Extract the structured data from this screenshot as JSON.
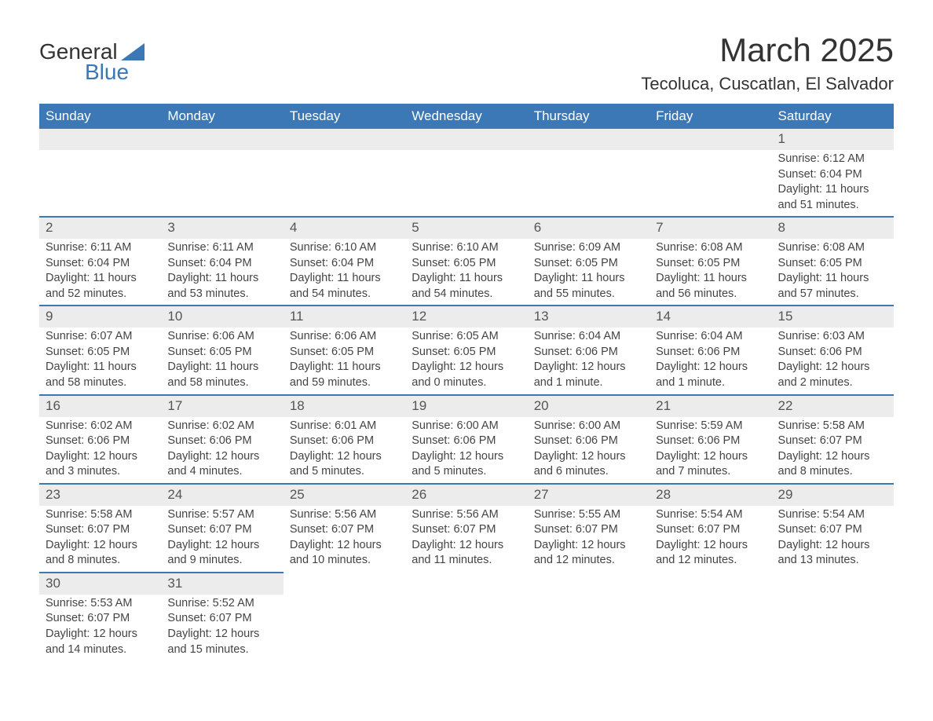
{
  "logo": {
    "text1": "General",
    "text2": "Blue",
    "accent_color": "#3b78b5"
  },
  "title": "March 2025",
  "location": "Tecoluca, Cuscatlan, El Salvador",
  "colors": {
    "header_bg": "#3b78b5",
    "header_text": "#ffffff",
    "daynum_bg": "#ececec",
    "row_border": "#3b78b5",
    "body_text": "#444444"
  },
  "typography": {
    "title_fontsize": 42,
    "location_fontsize": 22,
    "header_fontsize": 17,
    "daynum_fontsize": 17,
    "body_fontsize": 14.5
  },
  "day_headers": [
    "Sunday",
    "Monday",
    "Tuesday",
    "Wednesday",
    "Thursday",
    "Friday",
    "Saturday"
  ],
  "weeks": [
    [
      null,
      null,
      null,
      null,
      null,
      null,
      {
        "n": "1",
        "sunrise": "Sunrise: 6:12 AM",
        "sunset": "Sunset: 6:04 PM",
        "daylight": "Daylight: 11 hours and 51 minutes."
      }
    ],
    [
      {
        "n": "2",
        "sunrise": "Sunrise: 6:11 AM",
        "sunset": "Sunset: 6:04 PM",
        "daylight": "Daylight: 11 hours and 52 minutes."
      },
      {
        "n": "3",
        "sunrise": "Sunrise: 6:11 AM",
        "sunset": "Sunset: 6:04 PM",
        "daylight": "Daylight: 11 hours and 53 minutes."
      },
      {
        "n": "4",
        "sunrise": "Sunrise: 6:10 AM",
        "sunset": "Sunset: 6:04 PM",
        "daylight": "Daylight: 11 hours and 54 minutes."
      },
      {
        "n": "5",
        "sunrise": "Sunrise: 6:10 AM",
        "sunset": "Sunset: 6:05 PM",
        "daylight": "Daylight: 11 hours and 54 minutes."
      },
      {
        "n": "6",
        "sunrise": "Sunrise: 6:09 AM",
        "sunset": "Sunset: 6:05 PM",
        "daylight": "Daylight: 11 hours and 55 minutes."
      },
      {
        "n": "7",
        "sunrise": "Sunrise: 6:08 AM",
        "sunset": "Sunset: 6:05 PM",
        "daylight": "Daylight: 11 hours and 56 minutes."
      },
      {
        "n": "8",
        "sunrise": "Sunrise: 6:08 AM",
        "sunset": "Sunset: 6:05 PM",
        "daylight": "Daylight: 11 hours and 57 minutes."
      }
    ],
    [
      {
        "n": "9",
        "sunrise": "Sunrise: 6:07 AM",
        "sunset": "Sunset: 6:05 PM",
        "daylight": "Daylight: 11 hours and 58 minutes."
      },
      {
        "n": "10",
        "sunrise": "Sunrise: 6:06 AM",
        "sunset": "Sunset: 6:05 PM",
        "daylight": "Daylight: 11 hours and 58 minutes."
      },
      {
        "n": "11",
        "sunrise": "Sunrise: 6:06 AM",
        "sunset": "Sunset: 6:05 PM",
        "daylight": "Daylight: 11 hours and 59 minutes."
      },
      {
        "n": "12",
        "sunrise": "Sunrise: 6:05 AM",
        "sunset": "Sunset: 6:05 PM",
        "daylight": "Daylight: 12 hours and 0 minutes."
      },
      {
        "n": "13",
        "sunrise": "Sunrise: 6:04 AM",
        "sunset": "Sunset: 6:06 PM",
        "daylight": "Daylight: 12 hours and 1 minute."
      },
      {
        "n": "14",
        "sunrise": "Sunrise: 6:04 AM",
        "sunset": "Sunset: 6:06 PM",
        "daylight": "Daylight: 12 hours and 1 minute."
      },
      {
        "n": "15",
        "sunrise": "Sunrise: 6:03 AM",
        "sunset": "Sunset: 6:06 PM",
        "daylight": "Daylight: 12 hours and 2 minutes."
      }
    ],
    [
      {
        "n": "16",
        "sunrise": "Sunrise: 6:02 AM",
        "sunset": "Sunset: 6:06 PM",
        "daylight": "Daylight: 12 hours and 3 minutes."
      },
      {
        "n": "17",
        "sunrise": "Sunrise: 6:02 AM",
        "sunset": "Sunset: 6:06 PM",
        "daylight": "Daylight: 12 hours and 4 minutes."
      },
      {
        "n": "18",
        "sunrise": "Sunrise: 6:01 AM",
        "sunset": "Sunset: 6:06 PM",
        "daylight": "Daylight: 12 hours and 5 minutes."
      },
      {
        "n": "19",
        "sunrise": "Sunrise: 6:00 AM",
        "sunset": "Sunset: 6:06 PM",
        "daylight": "Daylight: 12 hours and 5 minutes."
      },
      {
        "n": "20",
        "sunrise": "Sunrise: 6:00 AM",
        "sunset": "Sunset: 6:06 PM",
        "daylight": "Daylight: 12 hours and 6 minutes."
      },
      {
        "n": "21",
        "sunrise": "Sunrise: 5:59 AM",
        "sunset": "Sunset: 6:06 PM",
        "daylight": "Daylight: 12 hours and 7 minutes."
      },
      {
        "n": "22",
        "sunrise": "Sunrise: 5:58 AM",
        "sunset": "Sunset: 6:07 PM",
        "daylight": "Daylight: 12 hours and 8 minutes."
      }
    ],
    [
      {
        "n": "23",
        "sunrise": "Sunrise: 5:58 AM",
        "sunset": "Sunset: 6:07 PM",
        "daylight": "Daylight: 12 hours and 8 minutes."
      },
      {
        "n": "24",
        "sunrise": "Sunrise: 5:57 AM",
        "sunset": "Sunset: 6:07 PM",
        "daylight": "Daylight: 12 hours and 9 minutes."
      },
      {
        "n": "25",
        "sunrise": "Sunrise: 5:56 AM",
        "sunset": "Sunset: 6:07 PM",
        "daylight": "Daylight: 12 hours and 10 minutes."
      },
      {
        "n": "26",
        "sunrise": "Sunrise: 5:56 AM",
        "sunset": "Sunset: 6:07 PM",
        "daylight": "Daylight: 12 hours and 11 minutes."
      },
      {
        "n": "27",
        "sunrise": "Sunrise: 5:55 AM",
        "sunset": "Sunset: 6:07 PM",
        "daylight": "Daylight: 12 hours and 12 minutes."
      },
      {
        "n": "28",
        "sunrise": "Sunrise: 5:54 AM",
        "sunset": "Sunset: 6:07 PM",
        "daylight": "Daylight: 12 hours and 12 minutes."
      },
      {
        "n": "29",
        "sunrise": "Sunrise: 5:54 AM",
        "sunset": "Sunset: 6:07 PM",
        "daylight": "Daylight: 12 hours and 13 minutes."
      }
    ],
    [
      {
        "n": "30",
        "sunrise": "Sunrise: 5:53 AM",
        "sunset": "Sunset: 6:07 PM",
        "daylight": "Daylight: 12 hours and 14 minutes."
      },
      {
        "n": "31",
        "sunrise": "Sunrise: 5:52 AM",
        "sunset": "Sunset: 6:07 PM",
        "daylight": "Daylight: 12 hours and 15 minutes."
      },
      null,
      null,
      null,
      null,
      null
    ]
  ]
}
